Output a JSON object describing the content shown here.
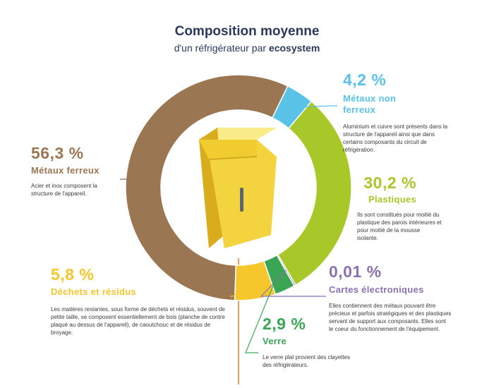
{
  "title": {
    "line1": "Composition moyenne",
    "line2_prefix": "d'un réfrigérateur par ",
    "line2_brand": "ecosystem"
  },
  "chart_data": {
    "type": "donut",
    "title": "Composition moyenne d'un réfrigérateur par ecosystem",
    "unit": "%",
    "slices": [
      {
        "name": "Métaux non ferreux",
        "label": "4,2 %",
        "value": 4.2,
        "color": "#5bc2e7",
        "description": "Aluminium et cuivre sont présents dans la structure de l'appareil ainsi que dans certains composants du circuit de réfrigération."
      },
      {
        "name": "Plastiques",
        "label": "30,2 %",
        "value": 30.2,
        "color": "#a8c82a",
        "description": "Ils sont constitués pour moitié du plastique des parois intérieures et pour moitié de la mousse isolante."
      },
      {
        "name": "Cartes électroniques",
        "label": "0,01 %",
        "value": 0.01,
        "color": "#8a72b2",
        "description": "Elles contiennent des métaux pouvant être précieux et parfois stratégiques et des plastiques servant de support aux composants. Elles sont le coeur du fonctionnement de l'équipement."
      },
      {
        "name": "Verre",
        "label": "2,9 %",
        "value": 2.9,
        "color": "#3aa655",
        "description": "Le verre plat provient des clayettes des réfrigérateurs."
      },
      {
        "name": "Déchets et résidus",
        "label": "5,8 %",
        "value": 5.8,
        "color": "#f5c72c",
        "description": "Les matières restantes, sous forme de déchets et résidus, souvent de petite taille, se composent essentiellement de bois (planche de contre plaqué au dessus de l'appareil), de caoutchouc et de résidus de broyage."
      },
      {
        "name": "Métaux ferreux",
        "label": "56,3 %",
        "value": 56.3,
        "color": "#9b7653",
        "description": "Acier et inox composent la structure de l'appareil."
      }
    ]
  },
  "colors": {
    "title": "#2b3a5c",
    "separator": "#ef7d33",
    "fridge_body": "#f4d43e",
    "fridge_side": "#d8ac1c"
  },
  "icons": {
    "center": "refrigerator-icon"
  }
}
